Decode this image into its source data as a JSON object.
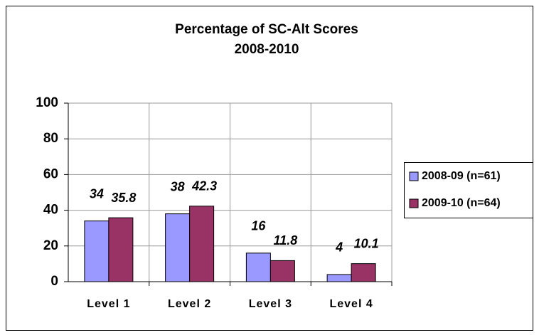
{
  "chart_data": {
    "type": "bar",
    "title": "Percentage of SC-Alt Scores",
    "subtitle": "2008-2010",
    "categories": [
      "Level 1",
      "Level 2",
      "Level 3",
      "Level 4"
    ],
    "series": [
      {
        "name": "2008-09 (n=61)",
        "color": "#9999ff",
        "label_color": "#1a1aff",
        "values": [
          34,
          38,
          16,
          4
        ]
      },
      {
        "name": "2009-10 (n=64)",
        "color": "#993366",
        "label_color": "#993399",
        "values": [
          35.8,
          42.3,
          11.8,
          10.1
        ]
      }
    ],
    "ylim": [
      0,
      100
    ],
    "yticks": [
      0,
      20,
      40,
      60,
      80,
      100
    ],
    "grid": true,
    "legend": "right"
  }
}
